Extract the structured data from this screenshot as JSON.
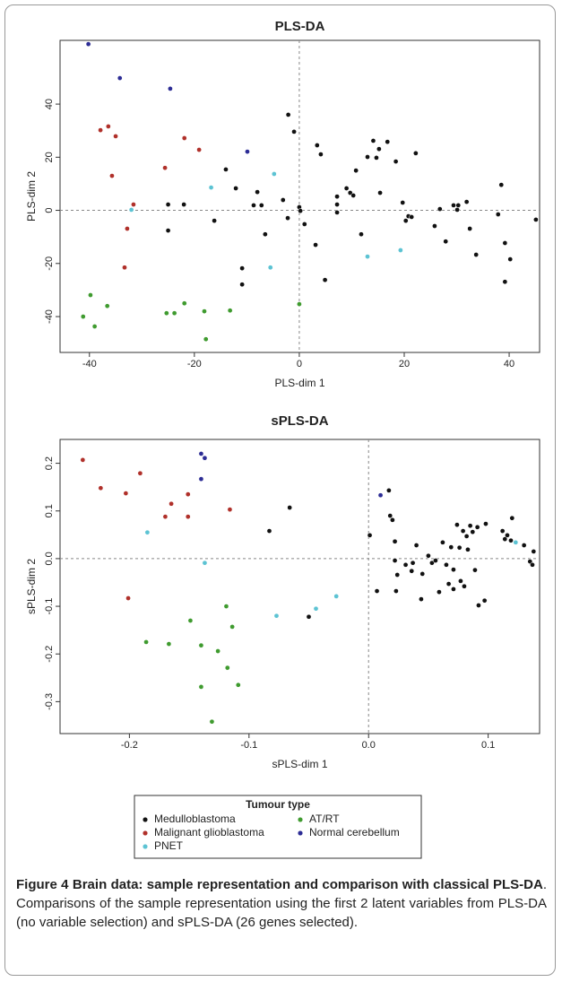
{
  "chart_data": [
    {
      "type": "scatter",
      "title": "PLS-DA",
      "x_label": "PLS-dim 1",
      "y_label": "PLS-dim 2",
      "xlim": [
        -45.6,
        45.8
      ],
      "ylim": [
        -53.5,
        64
      ],
      "xticks": [
        -40,
        -20,
        0,
        20,
        40
      ],
      "yticks": [
        -40,
        -20,
        0,
        20,
        40
      ],
      "zero_lines": true,
      "series": [
        {
          "name": "Medulloblastoma",
          "color": "#111111",
          "x": [
            -25,
            -25,
            -22,
            -16.2,
            -14,
            -12.1,
            -10.9,
            -10.9,
            -8.7,
            -8,
            -7.2,
            -6.5,
            -3.1,
            -2.2,
            -2.1,
            -1,
            0,
            0.2,
            1,
            3.1,
            3.4,
            4.1,
            4.9,
            7.2,
            7.2,
            7.2,
            9,
            9.7,
            10.3,
            10.8,
            11.8,
            13,
            14.1,
            14.7,
            15.2,
            15.4,
            16.8,
            18.4,
            19.7,
            20.3,
            20.8,
            21.4,
            22.2,
            25.8,
            26.8,
            27.9,
            29.4,
            30.1,
            30.3,
            31.9,
            32.5,
            33.7,
            37.9,
            38.5,
            39.2,
            39.2,
            40.2,
            45.1
          ],
          "y": [
            2.2,
            -7.6,
            2.2,
            -3.9,
            15.4,
            8.3,
            -21.8,
            -27.9,
            1.9,
            6.9,
            1.9,
            -9,
            3.9,
            -2.9,
            36,
            29.6,
            1.2,
            -0.2,
            -5.2,
            -13,
            24.5,
            21.1,
            -26.2,
            5.2,
            2.2,
            -0.8,
            8.3,
            6.6,
            5.6,
            15,
            -9,
            20.1,
            26.2,
            19.8,
            23.1,
            6.6,
            25.8,
            18.4,
            2.9,
            -3.9,
            -2.2,
            -2.5,
            21.5,
            -5.9,
            0.5,
            -11.7,
            1.9,
            0.2,
            1.9,
            3.2,
            -6.9,
            -16.7,
            -1.5,
            9.6,
            -12.3,
            -26.9,
            -18.4,
            -3.5
          ]
        },
        {
          "name": "Malignant glioblastoma",
          "color": "#b0302a",
          "x": [
            -37.9,
            -36.4,
            -35,
            -35.7,
            -31.6,
            -32.8,
            -33.3,
            -25.6,
            -21.9,
            -19.1
          ],
          "y": [
            30.2,
            31.6,
            27.9,
            13,
            2.2,
            -6.9,
            -21.5,
            16,
            27.2,
            22.8
          ]
        },
        {
          "name": "PNET",
          "color": "#5cc3d3",
          "x": [
            -32,
            -16.8,
            -4.8,
            -5.5,
            13,
            19.3
          ],
          "y": [
            0.2,
            8.6,
            13.7,
            -21.5,
            -17.4,
            -15
          ]
        },
        {
          "name": "AT/RT",
          "color": "#3f9b2f",
          "x": [
            -39.8,
            -41.2,
            -39,
            -36.6,
            -25.3,
            -23.8,
            -21.9,
            -18.1,
            -17.8,
            -13.2,
            0
          ],
          "y": [
            -31.9,
            -40,
            -43.7,
            -36,
            -38.7,
            -38.7,
            -35,
            -38,
            -48.5,
            -37.7,
            -35.3
          ]
        },
        {
          "name": "Normal cerebellum",
          "color": "#2c2c95",
          "x": [
            -40.2,
            -34.2,
            -24.6,
            -9.9
          ],
          "y": [
            62.6,
            49.8,
            45.8,
            22.1
          ]
        }
      ]
    },
    {
      "type": "scatter",
      "title": "sPLS-DA",
      "x_label": "sPLS-dim 1",
      "y_label": "sPLS-dim 2",
      "xlim": [
        -0.258,
        0.143
      ],
      "ylim": [
        -0.367,
        0.25
      ],
      "xticks": [
        -0.2,
        -0.1,
        {
          "value": 0,
          "label": "0.0"
        },
        0.1
      ],
      "yticks": [
        -0.3,
        -0.2,
        -0.1,
        {
          "value": 0,
          "label": "0.0"
        },
        0.1,
        0.2
      ],
      "zero_lines": true,
      "series": [
        {
          "color": "#111111",
          "x": [
            -0.066,
            -0.083,
            -0.05,
            0.001,
            0.007,
            0.017,
            0.018,
            0.02,
            0.022,
            0.022,
            0.023,
            0.031,
            0.036,
            0.04,
            0.044,
            0.045,
            0.05,
            0.053,
            0.056,
            0.059,
            0.062,
            0.065,
            0.067,
            0.069,
            0.071,
            0.071,
            0.074,
            0.076,
            0.077,
            0.079,
            0.08,
            0.082,
            0.083,
            0.085,
            0.087,
            0.089,
            0.091,
            0.092,
            0.097,
            0.098,
            0.112,
            0.114,
            0.116,
            0.119,
            0.12,
            0.13,
            0.135,
            0.137,
            0.138,
            0.037,
            0.024
          ],
          "y": [
            0.107,
            0.058,
            -0.122,
            0.049,
            -0.068,
            0.143,
            0.09,
            0.081,
            0.036,
            -0.004,
            -0.068,
            -0.013,
            -0.026,
            0.028,
            -0.085,
            -0.032,
            0.006,
            -0.009,
            -0.004,
            -0.07,
            0.034,
            -0.013,
            -0.053,
            0.024,
            -0.023,
            -0.064,
            0.071,
            0.023,
            -0.047,
            0.058,
            -0.058,
            0.047,
            0.019,
            0.069,
            0.056,
            -0.024,
            0.066,
            -0.098,
            -0.088,
            0.073,
            0.058,
            0.041,
            0.049,
            0.038,
            0.085,
            0.028,
            -0.006,
            -0.013,
            0.015,
            -0.009,
            -0.034
          ]
        },
        {
          "color": "#b0302a",
          "x": [
            -0.239,
            -0.224,
            -0.203,
            -0.191,
            -0.165,
            -0.17,
            -0.151,
            -0.151,
            -0.116,
            -0.201
          ],
          "y": [
            0.207,
            0.148,
            0.137,
            0.179,
            0.115,
            0.088,
            0.135,
            0.088,
            0.103,
            -0.083
          ]
        },
        {
          "color": "#5cc3d3",
          "x": [
            -0.185,
            -0.137,
            -0.077,
            -0.044,
            -0.027,
            0.123
          ],
          "y": [
            0.055,
            -0.009,
            -0.12,
            -0.105,
            -0.079,
            0.034
          ]
        },
        {
          "color": "#3f9b2f",
          "x": [
            -0.186,
            -0.167,
            -0.149,
            -0.14,
            -0.126,
            -0.119,
            -0.114,
            -0.118,
            -0.14,
            -0.109,
            -0.131
          ],
          "y": [
            -0.175,
            -0.179,
            -0.13,
            -0.182,
            -0.194,
            -0.1,
            -0.143,
            -0.229,
            -0.269,
            -0.265,
            -0.342
          ]
        },
        {
          "color": "#2c2c95",
          "x": [
            -0.14,
            -0.137,
            -0.14,
            0.01
          ],
          "y": [
            0.22,
            0.211,
            0.167,
            0.133
          ]
        }
      ]
    }
  ],
  "legend": {
    "title": "Tumour type"
  },
  "caption": {
    "label": "Figure 4",
    "title": "Brain data: sample representation and comparison with classical PLS-DA",
    "text": ". Comparisons of the sample representation using the first 2 latent variables from PLS-DA (no variable selection) and sPLS-DA (26 genes selected)."
  }
}
